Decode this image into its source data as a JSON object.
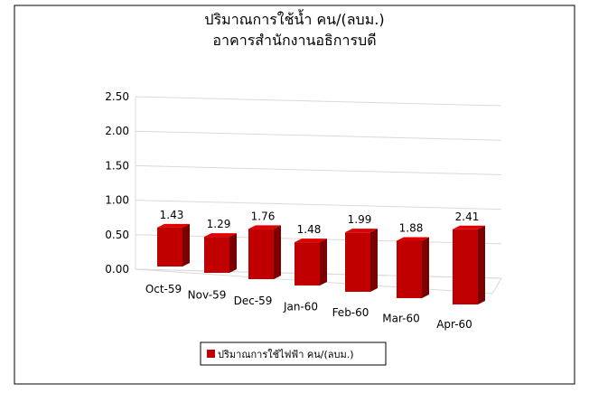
{
  "chart_data": {
    "type": "bar3d",
    "title": [
      "ปริมาณการใช้น้ำ คน/(ลบม.)",
      "อาคารสำนักงานอธิการบดี"
    ],
    "categories": [
      "Oct-59",
      "Nov-59",
      "Dec-59",
      "Jan-60",
      "Feb-60",
      "Mar-60",
      "Apr-60"
    ],
    "series": [
      {
        "name": "ปริมาณการใช้ไฟฟ้า คน/(ลบม.)",
        "color": "#c00000",
        "values": [
          1.43,
          1.29,
          1.76,
          1.48,
          1.99,
          1.88,
          2.41
        ]
      }
    ],
    "ylim": [
      0,
      2.5
    ],
    "yticks": [
      {
        "value": 0,
        "label": "0.00"
      },
      {
        "value": 0.5,
        "label": "0.50"
      },
      {
        "value": 1,
        "label": "1.00"
      },
      {
        "value": 1.5,
        "label": "1.50"
      },
      {
        "value": 2,
        "label": "2.00"
      },
      {
        "value": 2.5,
        "label": "2.50"
      }
    ],
    "grid": true,
    "legend": "bottom"
  }
}
